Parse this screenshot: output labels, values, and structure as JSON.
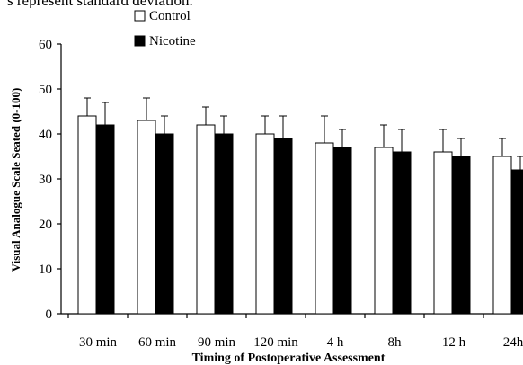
{
  "caption_fragment": "s represent standard deviation.",
  "chart_data": {
    "type": "bar",
    "xlabel": "Timing of  Postoperative Assessment",
    "ylabel": "Visual Analogue Scale Seated (0-100)",
    "ylim": [
      0,
      60
    ],
    "yticks": [
      0,
      10,
      20,
      30,
      40,
      50,
      60
    ],
    "categories": [
      "30 min",
      "60 min",
      "90 min",
      "120 min",
      "4 h",
      "8h",
      "12 h",
      "24h"
    ],
    "legend": {
      "placement": "top-right"
    },
    "series": [
      {
        "name": "Control",
        "fill": "#ffffff",
        "values": [
          44,
          43,
          42,
          40,
          38,
          37,
          36,
          35
        ],
        "errors": [
          4,
          5,
          4,
          4,
          6,
          5,
          5,
          4
        ]
      },
      {
        "name": "Nicotine",
        "fill": "#000000",
        "values": [
          42,
          40,
          40,
          39,
          37,
          36,
          35,
          32
        ],
        "errors": [
          5,
          4,
          4,
          5,
          4,
          5,
          4,
          3
        ]
      }
    ]
  }
}
